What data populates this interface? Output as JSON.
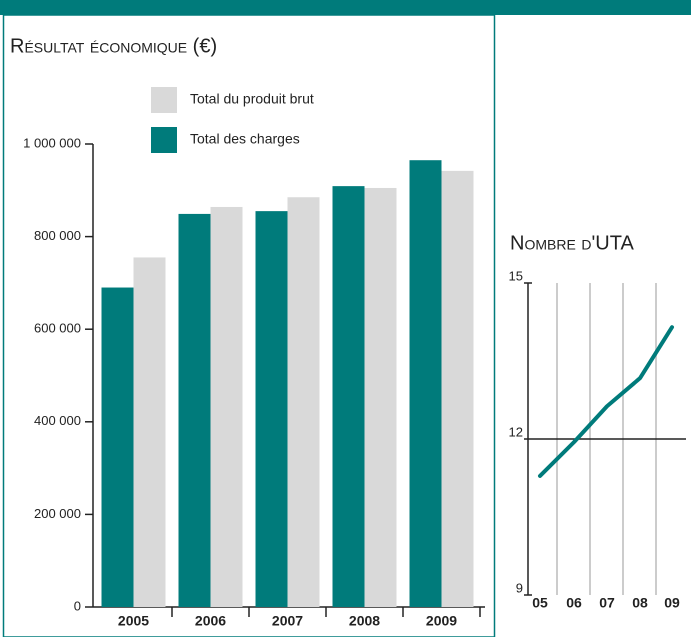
{
  "chart_data": [
    {
      "type": "bar",
      "title": "Résultat économique (€)",
      "categories": [
        "2005",
        "2006",
        "2007",
        "2008",
        "2009"
      ],
      "series": [
        {
          "name": "Total des charges",
          "color": "#007b7b",
          "values": [
            690000,
            849000,
            855000,
            909000,
            965000
          ]
        },
        {
          "name": "Total du produit brut",
          "color": "#d9d9d9",
          "values": [
            755000,
            864000,
            885000,
            905000,
            942000
          ]
        }
      ],
      "ylim": [
        0,
        1000000
      ],
      "yticks": [
        0,
        {
          "value": 200000,
          "label": "200 000"
        },
        {
          "value": 400000,
          "label": "400 000"
        },
        {
          "value": 600000,
          "label": "600 000"
        },
        {
          "value": 800000,
          "label": "800 000"
        },
        {
          "value": 1000000,
          "label": "1 000 000"
        }
      ]
    },
    {
      "type": "line",
      "title": "Nombre d'UTA",
      "categories": [
        "05",
        "06",
        "07",
        "08",
        "09"
      ],
      "series": [
        {
          "color": "#007b7b",
          "values": [
            11.29,
            11.94,
            12.63,
            13.17,
            14.15
          ]
        }
      ],
      "ylim": [
        9,
        15
      ],
      "yticks": [
        9,
        12,
        15
      ]
    }
  ]
}
